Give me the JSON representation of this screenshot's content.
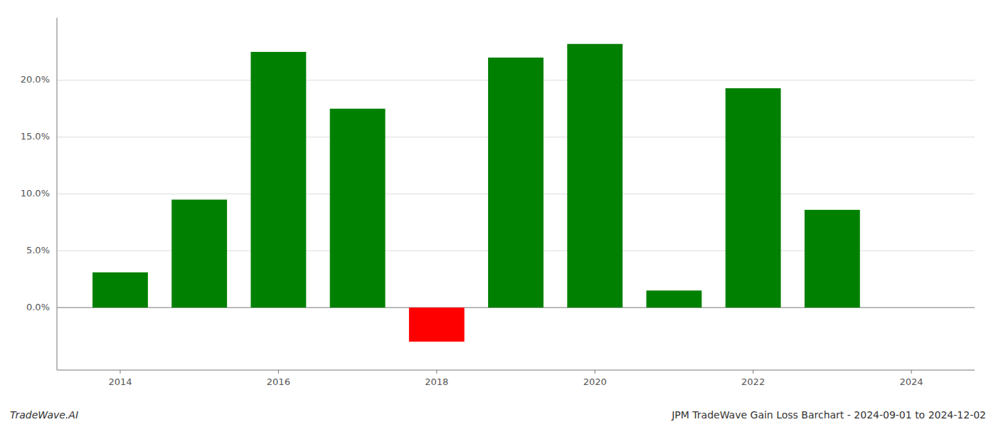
{
  "chart_data": {
    "type": "bar",
    "x": [
      2014,
      2015,
      2016,
      2017,
      2018,
      2019,
      2020,
      2021,
      2022,
      2023
    ],
    "values": [
      0.031,
      0.095,
      0.225,
      0.175,
      -0.03,
      0.22,
      0.232,
      0.015,
      0.193,
      0.086
    ],
    "colors": [
      "#008000",
      "#008000",
      "#008000",
      "#008000",
      "#ff0000",
      "#008000",
      "#008000",
      "#008000",
      "#008000",
      "#008000"
    ],
    "xlim": [
      2013.2,
      2024.8
    ],
    "xticks": [
      2014,
      2016,
      2018,
      2020,
      2022,
      2024
    ],
    "ylim": [
      -0.055,
      0.255
    ],
    "yticks": [
      {
        "value": 0.0,
        "label": "0.0%"
      },
      {
        "value": 0.05,
        "label": "5.0%"
      },
      {
        "value": 0.1,
        "label": "10.0%"
      },
      {
        "value": 0.15,
        "label": "15.0%"
      },
      {
        "value": 0.2,
        "label": "20.0%"
      }
    ],
    "grid": true,
    "annotations": [
      "TradeWave.AI",
      "JPM TradeWave Gain Loss Barchart - 2024-09-01 to 2024-12-02"
    ]
  }
}
